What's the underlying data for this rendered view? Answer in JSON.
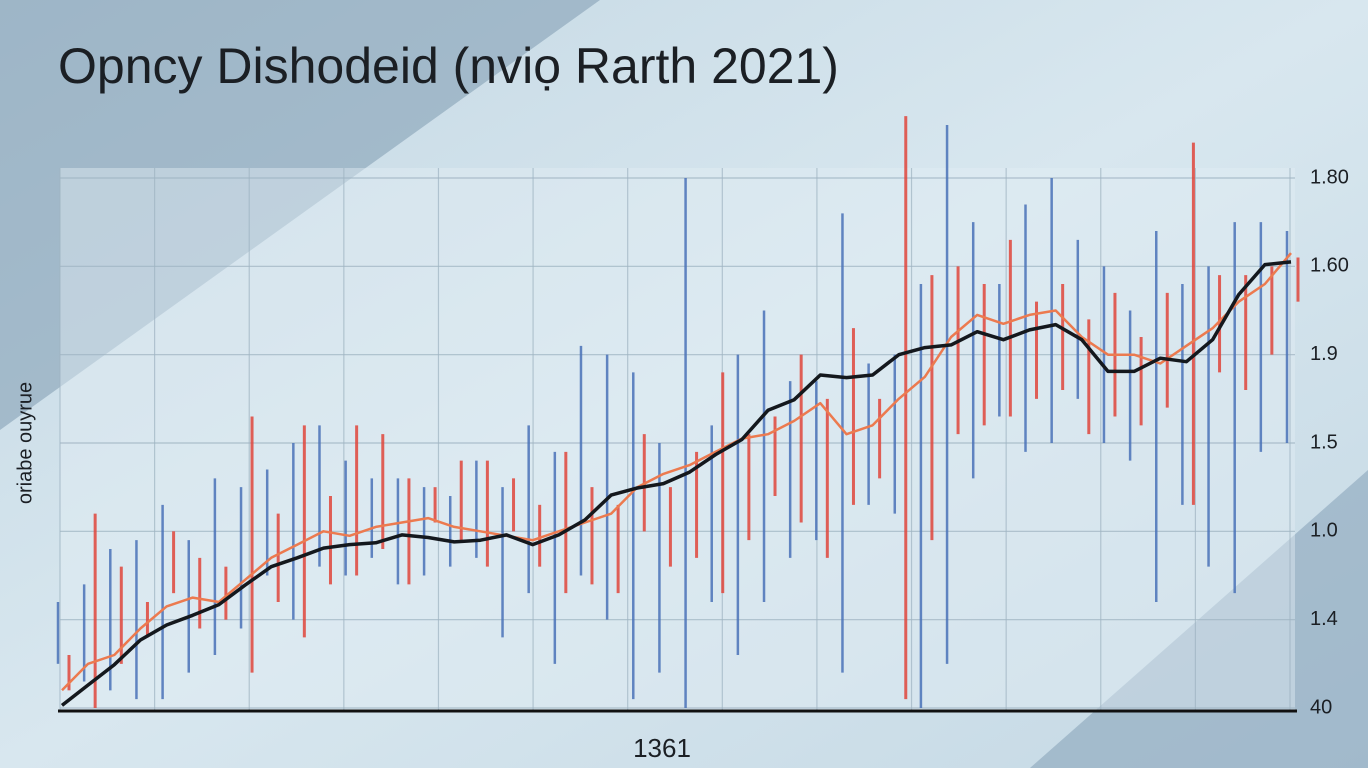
{
  "chart_data": {
    "type": "line",
    "title": "Opncy Dishodeid (nviọ Rarth 2021)",
    "ylabel": "oriabe ouyrue",
    "xlabel": "1361",
    "ylim": [
      0,
      6
    ],
    "yticks": [
      {
        "value": 0,
        "label": "40"
      },
      {
        "value": 1,
        "label": "1.4"
      },
      {
        "value": 2,
        "label": "1.0"
      },
      {
        "value": 3,
        "label": "1.5"
      },
      {
        "value": 4,
        "label": "1.9"
      },
      {
        "value": 5,
        "label": "1.60"
      },
      {
        "value": 6,
        "label": "1.80"
      }
    ],
    "grid": true,
    "series": [
      {
        "type": "spike",
        "color": "#4a72b8",
        "low": [
          0.5,
          0.3,
          0.2,
          0.1,
          0.1,
          0.4,
          0.6,
          0.9,
          1.5,
          1.0,
          1.6,
          1.5,
          1.7,
          1.4,
          1.5,
          1.6,
          1.7,
          0.8,
          1.3,
          0.5,
          1.5,
          1.0,
          0.1,
          0.4,
          0.0,
          1.2,
          0.6,
          1.2,
          1.7,
          1.9,
          0.4,
          2.3,
          2.2,
          0.0,
          0.5,
          2.6,
          3.3,
          2.9,
          3.0,
          3.5,
          3.0,
          2.8,
          1.2,
          2.3,
          1.6,
          1.3,
          2.9,
          3.0
        ],
        "high": [
          1.2,
          1.4,
          1.8,
          1.9,
          2.3,
          1.9,
          2.6,
          2.5,
          2.7,
          3.0,
          3.2,
          2.8,
          2.6,
          2.6,
          2.5,
          2.4,
          2.8,
          2.5,
          3.2,
          2.9,
          4.1,
          4.0,
          3.8,
          3.0,
          6.0,
          3.2,
          4.0,
          4.5,
          3.7,
          3.7,
          5.6,
          3.9,
          4.0,
          4.8,
          6.6,
          5.5,
          4.8,
          5.7,
          6.0,
          5.3,
          5.0,
          4.5,
          5.4,
          4.8,
          5.0,
          5.5,
          5.5,
          5.4
        ]
      },
      {
        "type": "spike",
        "color": "#e0463c",
        "low": [
          0.2,
          0.0,
          0.5,
          0.8,
          1.3,
          0.9,
          1.0,
          0.4,
          1.2,
          0.8,
          1.4,
          1.5,
          1.8,
          1.4,
          2.1,
          1.9,
          1.6,
          2.0,
          1.6,
          1.3,
          1.4,
          1.3,
          2.0,
          1.6,
          1.7,
          1.3,
          1.9,
          2.4,
          2.1,
          1.7,
          2.3,
          2.6,
          0.1,
          1.9,
          3.1,
          3.2,
          3.3,
          3.5,
          3.6,
          3.1,
          3.3,
          3.2,
          3.4,
          2.3,
          3.8,
          3.6,
          4.0,
          4.6
        ],
        "high": [
          0.6,
          2.2,
          1.6,
          1.2,
          2.0,
          1.7,
          1.6,
          3.3,
          2.2,
          3.2,
          2.4,
          3.2,
          3.1,
          2.6,
          2.5,
          2.8,
          2.8,
          2.6,
          2.3,
          2.9,
          2.5,
          2.3,
          3.1,
          2.5,
          2.9,
          3.8,
          3.1,
          3.3,
          4.0,
          3.5,
          4.3,
          3.5,
          6.7,
          4.9,
          5.0,
          4.8,
          5.3,
          4.6,
          4.8,
          4.4,
          4.7,
          4.2,
          4.7,
          6.4,
          4.9,
          4.9,
          5.0,
          5.1
        ]
      },
      {
        "type": "line",
        "color": "#ec7a4f",
        "values": [
          0.2,
          0.5,
          0.6,
          0.9,
          1.15,
          1.25,
          1.2,
          1.45,
          1.7,
          1.85,
          2.0,
          1.95,
          2.05,
          2.1,
          2.15,
          2.05,
          2.0,
          1.95,
          1.9,
          2.0,
          2.1,
          2.2,
          2.5,
          2.65,
          2.75,
          2.9,
          3.05,
          3.1,
          3.25,
          3.45,
          3.1,
          3.2,
          3.5,
          3.75,
          4.2,
          4.45,
          4.35,
          4.45,
          4.5,
          4.2,
          4.0,
          4.0,
          3.9,
          4.1,
          4.3,
          4.6,
          4.8,
          5.15
        ]
      },
      {
        "type": "line",
        "color": "#14181d",
        "values": [
          0.03,
          0.26,
          0.49,
          0.77,
          0.94,
          1.05,
          1.17,
          1.39,
          1.6,
          1.7,
          1.81,
          1.85,
          1.87,
          1.96,
          1.93,
          1.88,
          1.9,
          1.96,
          1.85,
          1.96,
          2.13,
          2.41,
          2.49,
          2.54,
          2.67,
          2.87,
          3.04,
          3.37,
          3.49,
          3.77,
          3.74,
          3.77,
          4.0,
          4.08,
          4.11,
          4.26,
          4.17,
          4.28,
          4.34,
          4.17,
          3.81,
          3.81,
          3.96,
          3.92,
          4.17,
          4.68,
          5.02,
          5.05
        ]
      }
    ]
  }
}
